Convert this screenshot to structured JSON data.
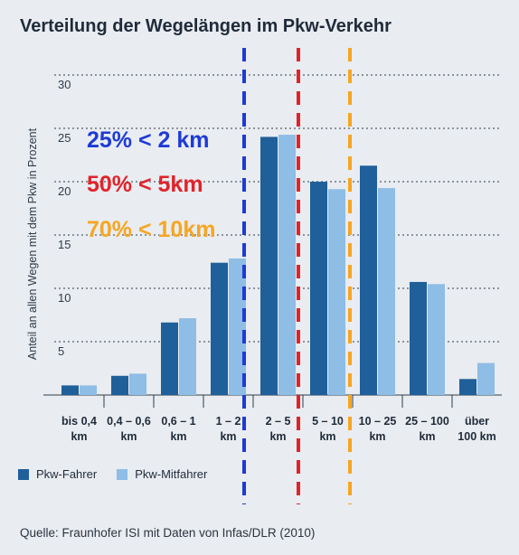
{
  "title": "Verteilung der Wegelängen im Pkw-Verkehr",
  "source": "Quelle: Fraunhofer ISI mit Daten von Infas/DLR (2010)",
  "colors": {
    "background": "#e9ecf0",
    "fahrer": "#1f5f9a",
    "mitfahrer": "#8ebde6",
    "line_blue": "#1e3ad6",
    "line_red": "#e0232b",
    "line_orange": "#f5a623"
  },
  "chart_data": {
    "type": "bar",
    "ylabel": "Anteil an allen Wegen mit dem Pkw in Prozent",
    "ylim": [
      0,
      30
    ],
    "yticks": [
      "5",
      "10",
      "15",
      "20",
      "25",
      "30"
    ],
    "grid": true,
    "categories": [
      [
        "bis 0,4",
        "km"
      ],
      [
        "0,4 – 0,6",
        "km"
      ],
      [
        "0,6 – 1",
        "km"
      ],
      [
        "1 – 2",
        "km"
      ],
      [
        "2 – 5",
        "km"
      ],
      [
        "5 – 10",
        "km"
      ],
      [
        "10 – 25",
        "km"
      ],
      [
        "25 – 100",
        "km"
      ],
      [
        "über",
        "100 km"
      ]
    ],
    "series": [
      {
        "name": "Pkw-Fahrer",
        "values": [
          0.9,
          1.8,
          6.8,
          12.4,
          24.2,
          20.0,
          21.5,
          10.6,
          1.5
        ]
      },
      {
        "name": "Pkw-Mitfahrer",
        "values": [
          0.9,
          2.0,
          7.2,
          12.8,
          24.4,
          19.3,
          19.4,
          10.4,
          3.0
        ]
      }
    ],
    "annotations": [
      {
        "text": "25% < 2 km",
        "color": "#1e3ad6"
      },
      {
        "text": "50% < 5km",
        "color": "#e0232b"
      },
      {
        "text": "70% < 10km",
        "color": "#f5a623"
      }
    ]
  }
}
